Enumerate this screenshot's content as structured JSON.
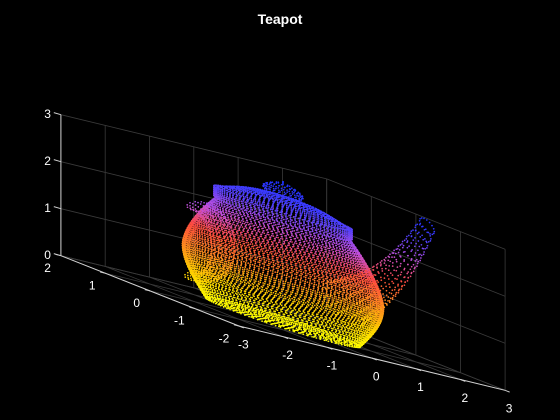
{
  "chart_data": {
    "type": "scatter",
    "title": "Teapot",
    "xlabel": "",
    "ylabel": "",
    "zlabel": "",
    "xlim": [
      -3,
      3
    ],
    "ylim": [
      -2,
      2
    ],
    "zlim": [
      0,
      3
    ],
    "x_ticks": [
      "-3",
      "-2",
      "-1",
      "0",
      "1",
      "2",
      "3"
    ],
    "y_ticks": [
      "-2",
      "-1",
      "0",
      "1",
      "2"
    ],
    "z_ticks": [
      "0",
      "1",
      "2",
      "3"
    ],
    "grid": true,
    "background": "#000000",
    "colormap": [
      "#1a30ff",
      "#4a40ff",
      "#c050e0",
      "#ff4a40",
      "#ff8a20",
      "#ffd200",
      "#ffff00"
    ]
  }
}
